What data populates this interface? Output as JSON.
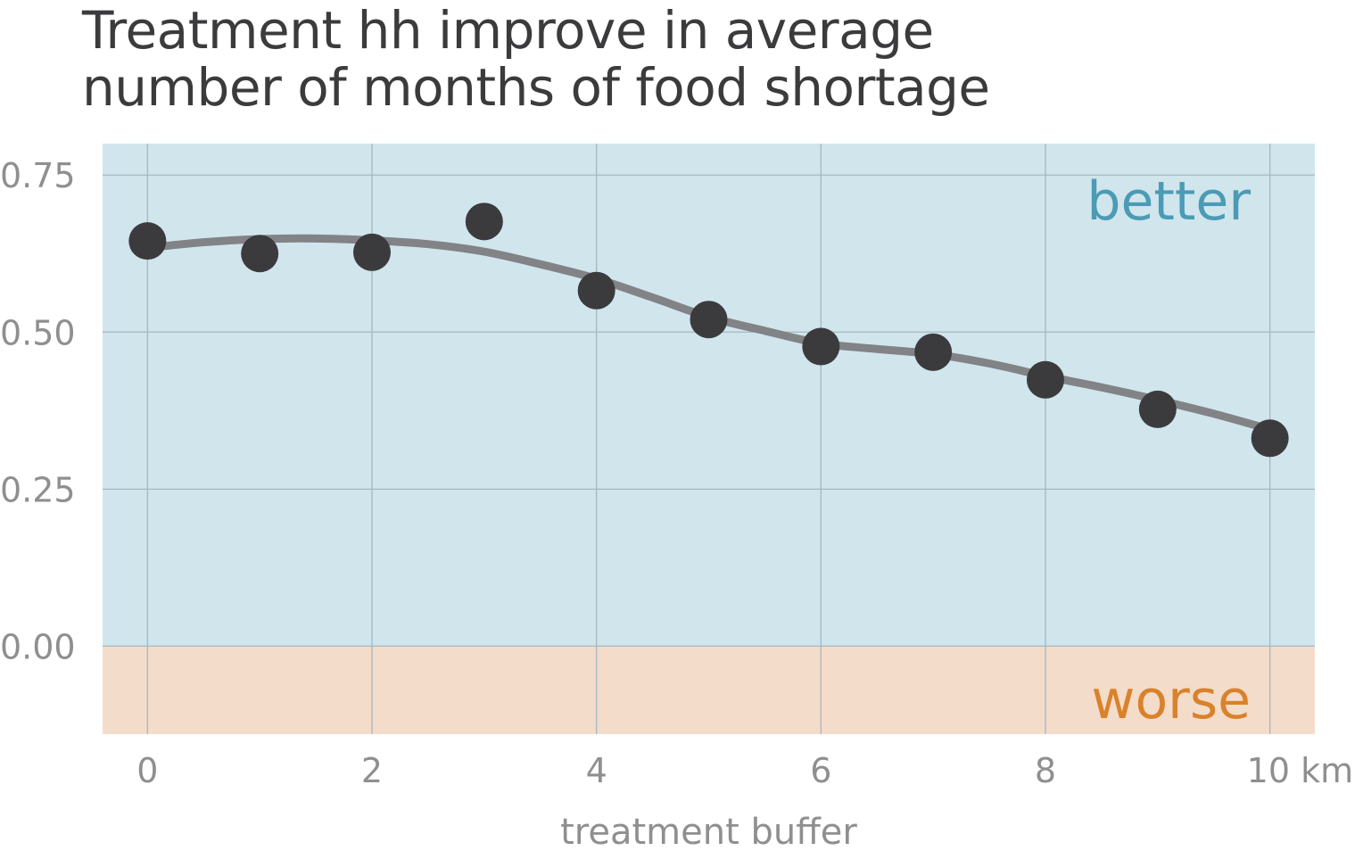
{
  "chart_data": {
    "type": "scatter",
    "title_lines": [
      "Treatment hh improve in average",
      "number of months of food shortage"
    ],
    "xlabel": "treatment buffer",
    "ylabel": "",
    "x_tick_labels": [
      "0",
      "2",
      "4",
      "6",
      "8",
      "10 km"
    ],
    "x_ticks": [
      0,
      2,
      4,
      6,
      8,
      10
    ],
    "y_tick_labels": [
      "0.00",
      "0.25",
      "0.50",
      "0.75"
    ],
    "y_ticks": [
      0,
      0.25,
      0.5,
      0.75
    ],
    "xlim": [
      -0.4,
      10.4
    ],
    "ylim": [
      -0.14,
      0.8
    ],
    "grid": true,
    "points": {
      "x": [
        0,
        1,
        2,
        3,
        4,
        5,
        6,
        7,
        8,
        9,
        10
      ],
      "y": [
        0.645,
        0.625,
        0.627,
        0.676,
        0.566,
        0.52,
        0.477,
        0.468,
        0.424,
        0.377,
        0.331
      ]
    },
    "smooth_line": {
      "x": [
        0,
        0.5,
        1,
        1.5,
        2,
        2.5,
        3,
        3.5,
        4,
        4.5,
        5,
        5.5,
        6,
        6.5,
        7,
        7.5,
        8,
        8.5,
        9,
        9.5,
        10
      ],
      "y": [
        0.634,
        0.643,
        0.648,
        0.649,
        0.646,
        0.64,
        0.628,
        0.608,
        0.585,
        0.555,
        0.524,
        0.502,
        0.482,
        0.473,
        0.465,
        0.45,
        0.43,
        0.412,
        0.392,
        0.37,
        0.345
      ]
    },
    "zones": [
      {
        "label": "better",
        "from": 0,
        "to": 0.8,
        "fill": "#d1e5ec",
        "text_color": "#4b9bb5"
      },
      {
        "label": "worse",
        "from": -0.14,
        "to": 0,
        "fill": "#f4dccb",
        "text_color": "#d9822b"
      }
    ],
    "colors": {
      "point": "#3b3b3d",
      "line": "#828387",
      "grid": "#a6b8bf",
      "tick": "#8f8f8f",
      "title": "#3b3b3d"
    }
  }
}
